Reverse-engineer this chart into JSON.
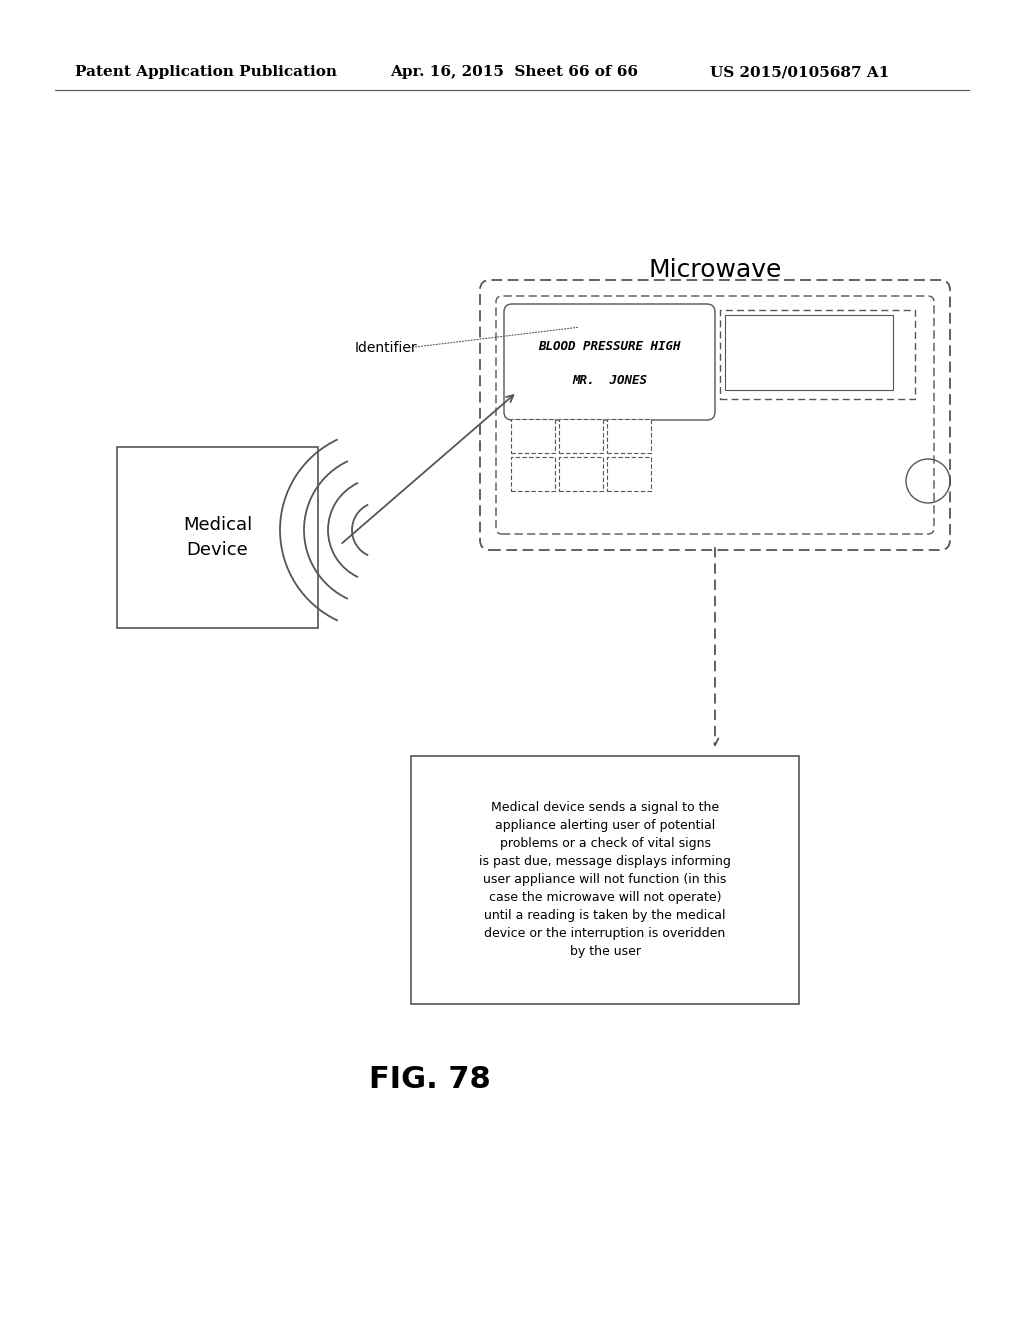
{
  "bg_color": "#ffffff",
  "header_left": "Patent Application Publication",
  "header_mid": "Apr. 16, 2015  Sheet 66 of 66",
  "header_right": "US 2015/0105687 A1",
  "microwave_label": "Microwave",
  "identifier_label": "Identifier",
  "medical_device_label": "Medical\nDevice",
  "display_line1": "BLOOD PRESSURE HIGH",
  "display_line2": "MR.  JONES",
  "description_text": "Medical device sends a signal to the\nappliance alerting user of potential\nproblems or a check of vital signs\nis past due, message displays informing\nuser appliance will not function (in this\ncase the microwave will not operate)\nuntil a reading is taken by the medical\ndevice or the interruption is overidden\nby the user",
  "fig_label": "FIG. 78",
  "line_color": "#555555",
  "text_color": "#000000",
  "header_fontsize": 11,
  "microwave_fontsize": 18,
  "identifier_fontsize": 10,
  "medical_device_fontsize": 13,
  "display_fontsize": 9,
  "desc_fontsize": 9,
  "fig_fontsize": 22
}
